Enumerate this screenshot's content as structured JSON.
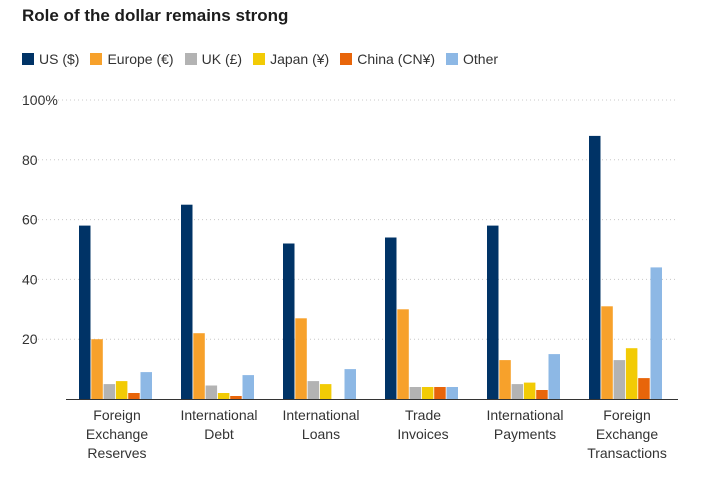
{
  "chart_data": {
    "type": "bar",
    "title": "Role of the dollar remains strong",
    "categories": [
      [
        "Foreign",
        "Exchange",
        "Reserves"
      ],
      [
        "International",
        "Debt"
      ],
      [
        "International",
        "Loans"
      ],
      [
        "Trade",
        "Invoices"
      ],
      [
        "International",
        "Payments"
      ],
      [
        "Foreign",
        "Exchange",
        "Transactions"
      ]
    ],
    "series": [
      {
        "name": "US ($)",
        "color": "#003366",
        "values": [
          58,
          65,
          52,
          54,
          58,
          88
        ]
      },
      {
        "name": "Europe (€)",
        "color": "#f7a12b",
        "values": [
          20,
          22,
          27,
          30,
          13,
          31
        ]
      },
      {
        "name": "UK (£)",
        "color": "#b3b3b3",
        "values": [
          5,
          4.5,
          6,
          4,
          5,
          13
        ]
      },
      {
        "name": "Japan (¥)",
        "color": "#f2cb05",
        "values": [
          6,
          2,
          5,
          4,
          5.5,
          17
        ]
      },
      {
        "name": "China (CN¥)",
        "color": "#e8650a",
        "values": [
          2,
          1,
          0,
          4,
          3,
          7
        ]
      },
      {
        "name": "Other",
        "color": "#8db8e5",
        "values": [
          9,
          8,
          10,
          4,
          15,
          44
        ]
      }
    ],
    "y_ticks": [
      "100%",
      "80",
      "60",
      "40",
      "20"
    ],
    "y_tick_values": [
      100,
      80,
      60,
      40,
      20
    ],
    "ylim": [
      0,
      100
    ],
    "grid": "dotted horizontal",
    "legend_position": "top-left"
  }
}
